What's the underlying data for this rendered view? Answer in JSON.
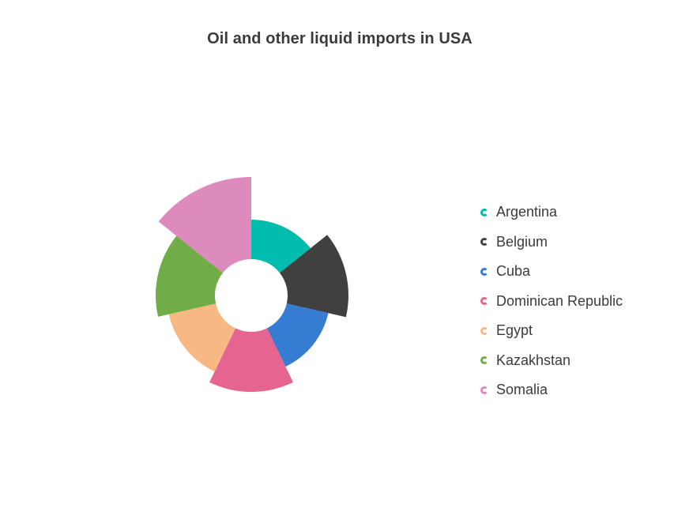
{
  "chart_data": {
    "type": "pie",
    "subtype": "variable-radius-doughnut",
    "title": "Oil and other liquid imports in USA",
    "legend_position": "right",
    "categories": [
      "Argentina",
      "Belgium",
      "Cuba",
      "Dominican Republic",
      "Egypt",
      "Kazakhstan",
      "Somalia"
    ],
    "series": [
      {
        "values": [
          1,
          1,
          1,
          1,
          1,
          1,
          1
        ],
        "radius": [
          96,
          123,
          100,
          122,
          107,
          121,
          150
        ]
      }
    ],
    "colors": [
      "#00bdae",
      "#404041",
      "#357cd2",
      "#e56590",
      "#f8b883",
      "#70ad47",
      "#dd8abd"
    ]
  }
}
